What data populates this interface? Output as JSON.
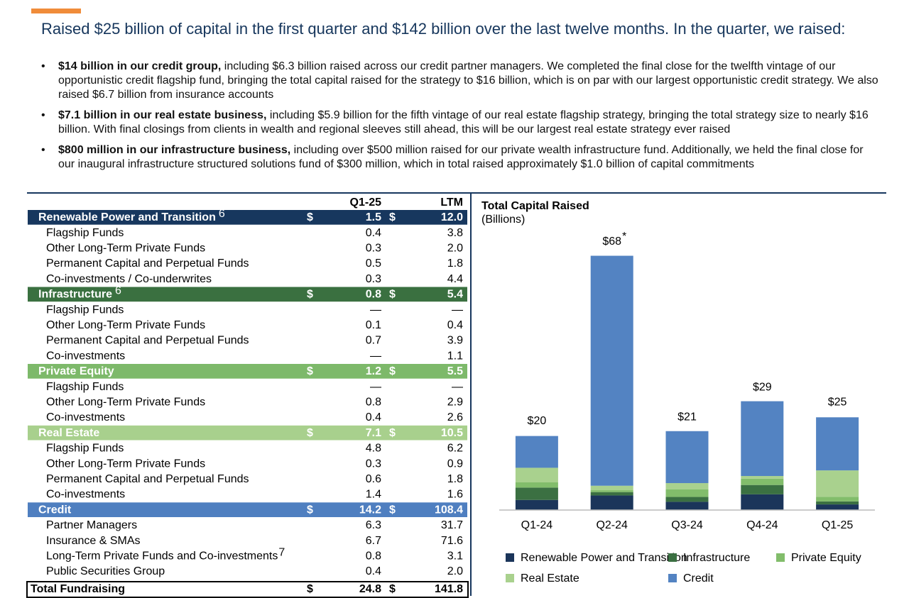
{
  "header": {
    "title": "Raised $25 billion of capital in the first quarter and $142 billion over the last twelve months. In the quarter, we raised:"
  },
  "bullets": [
    {
      "lead": "$14 billion in our credit group,",
      "text": " including $6.3 billion raised across our credit partner managers. We completed the final close for the twelfth vintage of our opportunistic credit flagship fund, bringing the total capital raised for the strategy to $16 billion, which is on par with our largest opportunistic credit strategy. We also raised $6.7 billion from insurance accounts"
    },
    {
      "lead": "$7.1 billion in our real estate business,",
      "text": " including $5.9 billion for the fifth vintage of our real estate flagship strategy, bringing the total strategy size to nearly $16 billion. With final closings from clients in wealth and regional sleeves still ahead, this will be our largest real estate strategy ever raised"
    },
    {
      "lead": "$800 million in our infrastructure business,",
      "text": " including over $500 million raised for our private wealth infrastructure fund. Additionally, we held the final close for our inaugural infrastructure structured solutions fund of $300 million, which in total raised approximately $1.0 billion of capital commitments"
    }
  ],
  "table": {
    "columns": [
      "Q1-25",
      "LTM"
    ],
    "currency": "$",
    "sections": [
      {
        "name": "Renewable Power and Transition",
        "note": "6",
        "color": "#17375e",
        "q1": "1.5",
        "ltm": "12.0",
        "rows": [
          {
            "label": "Flagship Funds",
            "q1": "0.4",
            "ltm": "3.8"
          },
          {
            "label": "Other Long-Term Private Funds",
            "q1": "0.3",
            "ltm": "2.0"
          },
          {
            "label": "Permanent Capital and Perpetual Funds",
            "q1": "0.5",
            "ltm": "1.8"
          },
          {
            "label": "Co-investments / Co-underwrites",
            "q1": "0.3",
            "ltm": "4.4"
          }
        ]
      },
      {
        "name": "Infrastructure",
        "note": "6",
        "color": "#3a7040",
        "q1": "0.8",
        "ltm": "5.4",
        "rows": [
          {
            "label": "Flagship Funds",
            "q1": "—",
            "ltm": "—"
          },
          {
            "label": "Other Long-Term Private Funds",
            "q1": "0.1",
            "ltm": "0.4"
          },
          {
            "label": "Permanent Capital and Perpetual Funds",
            "q1": "0.7",
            "ltm": "3.9"
          },
          {
            "label": "Co-investments",
            "q1": "—",
            "ltm": "1.1"
          }
        ]
      },
      {
        "name": "Private Equity",
        "color": "#7db96a",
        "q1": "1.2",
        "ltm": "5.5",
        "rows": [
          {
            "label": "Flagship Funds",
            "q1": "—",
            "ltm": "—"
          },
          {
            "label": "Other Long-Term Private Funds",
            "q1": "0.8",
            "ltm": "2.9"
          },
          {
            "label": "Co-investments",
            "q1": "0.4",
            "ltm": "2.6"
          }
        ]
      },
      {
        "name": "Real Estate",
        "color": "#a8d08d",
        "q1": "7.1",
        "ltm": "10.5",
        "rows": [
          {
            "label": "Flagship Funds",
            "q1": "4.8",
            "ltm": "6.2"
          },
          {
            "label": "Other Long-Term Private Funds",
            "q1": "0.3",
            "ltm": "0.9"
          },
          {
            "label": "Permanent Capital and Perpetual Funds",
            "q1": "0.6",
            "ltm": "1.8"
          },
          {
            "label": "Co-investments",
            "q1": "1.4",
            "ltm": "1.6"
          }
        ]
      },
      {
        "name": "Credit",
        "color": "#4f7fc0",
        "q1": "14.2",
        "ltm": "108.4",
        "rows": [
          {
            "label": "Partner Managers",
            "q1": "6.3",
            "ltm": "31.7"
          },
          {
            "label": "Insurance & SMAs",
            "q1": "6.7",
            "ltm": "71.6"
          },
          {
            "label": "Long-Term Private Funds and Co-investments",
            "note": "7",
            "q1": "0.8",
            "ltm": "3.1"
          },
          {
            "label": "Public Securities Group",
            "q1": "0.4",
            "ltm": "2.0"
          }
        ]
      }
    ],
    "total": {
      "label": "Total Fundraising",
      "q1": "24.8",
      "ltm": "141.8"
    }
  },
  "chart_data": {
    "type": "stacked_bar",
    "title": "Total Capital Raised",
    "subtitle": "(Billions)",
    "categories": [
      "Q1-24",
      "Q2-24",
      "Q3-24",
      "Q4-24",
      "Q1-25"
    ],
    "series": [
      {
        "name": "Renewable Power and Transition",
        "color": "#1b355a",
        "values": [
          2.7,
          3.9,
          2.2,
          4.2,
          1.5
        ]
      },
      {
        "name": "Infrastructure",
        "color": "#3b7042",
        "values": [
          3.3,
          0.9,
          1.3,
          2.5,
          0.8
        ]
      },
      {
        "name": "Private Equity",
        "color": "#82bd6b",
        "values": [
          1.4,
          0.5,
          2.0,
          1.7,
          1.2
        ]
      },
      {
        "name": "Real Estate",
        "color": "#a9d18e",
        "values": [
          3.9,
          1.2,
          1.7,
          0.7,
          7.1
        ]
      },
      {
        "name": "Credit",
        "color": "#5383c2",
        "values": [
          8.5,
          61.5,
          13.9,
          20.0,
          14.2
        ]
      }
    ],
    "totals": [
      20,
      68,
      21,
      29,
      25
    ],
    "total_labels": [
      "$20",
      "$68",
      "$21",
      "$29",
      "$25"
    ],
    "total_notes": [
      null,
      "*",
      null,
      null,
      null
    ],
    "ylim": [
      0,
      70
    ]
  }
}
